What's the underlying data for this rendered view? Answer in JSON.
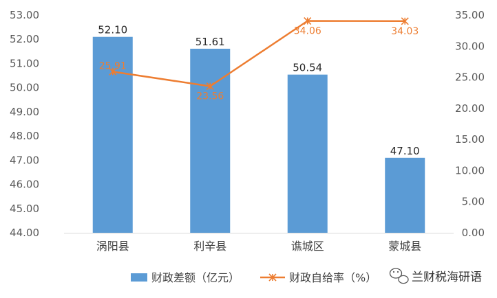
{
  "chart_data": {
    "type": "bar",
    "categories": [
      "涡阳县",
      "利辛县",
      "谯城区",
      "蒙城县"
    ],
    "series": [
      {
        "name": "财政差额（亿元）",
        "type": "bar",
        "axis": "left",
        "color": "#5B9BD5",
        "values": [
          52.1,
          51.61,
          50.54,
          47.1
        ],
        "labels": [
          "52.10",
          "51.61",
          "50.54",
          "47.10"
        ]
      },
      {
        "name": "财政自给率（%）",
        "type": "line",
        "axis": "right",
        "color": "#ED7D31",
        "marker": "asterisk",
        "values": [
          25.91,
          23.56,
          34.06,
          34.03
        ],
        "labels": [
          "25.91",
          "23.56",
          "34.06",
          "34.03"
        ]
      }
    ],
    "ylim_left": [
      44.0,
      53.0
    ],
    "yticks_left": [
      "44.00",
      "45.00",
      "46.00",
      "47.00",
      "48.00",
      "49.00",
      "50.00",
      "51.00",
      "52.00",
      "53.00"
    ],
    "ylim_right": [
      0.0,
      35.0
    ],
    "yticks_right": [
      "0.00",
      "5.00",
      "10.00",
      "15.00",
      "20.00",
      "25.00",
      "30.00",
      "35.00"
    ],
    "grid": false,
    "legend_position": "bottom"
  },
  "watermark": {
    "icon": "wechat-icon",
    "text": "兰财税海研语"
  }
}
